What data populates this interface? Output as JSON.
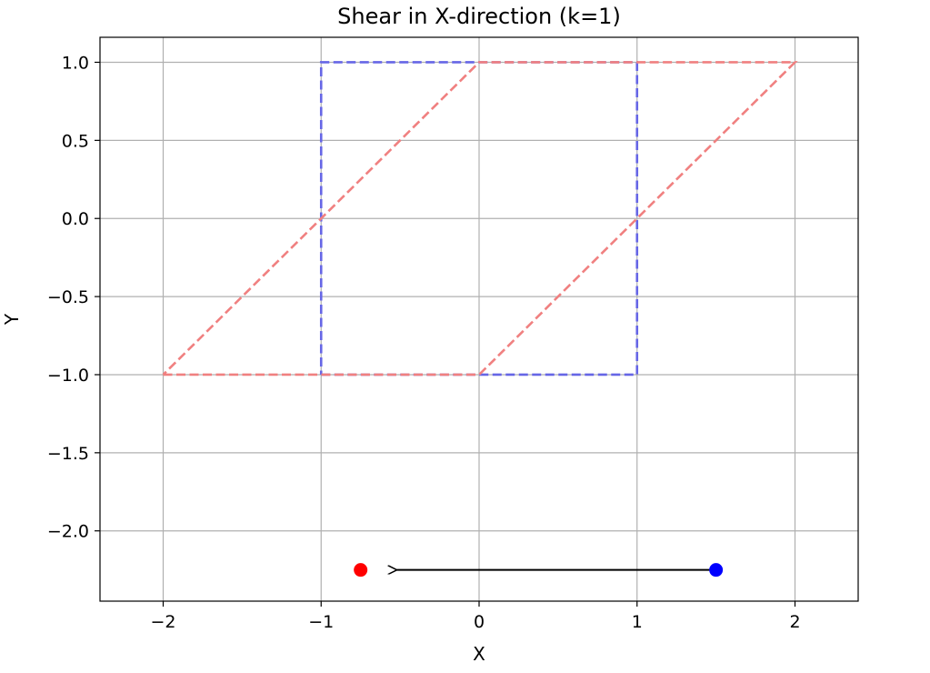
{
  "chart_data": {
    "type": "line",
    "title": "Shear in X-direction (k=1)",
    "xlabel": "X",
    "ylabel": "Y",
    "xlim": [
      -2.4,
      2.4
    ],
    "ylim": [
      -2.45,
      1.16
    ],
    "grid": true,
    "x_ticks": [
      {
        "value": -2,
        "label": "−2"
      },
      {
        "value": -1,
        "label": "−1"
      },
      {
        "value": 0,
        "label": "0"
      },
      {
        "value": 1,
        "label": "1"
      },
      {
        "value": 2,
        "label": "2"
      }
    ],
    "y_ticks": [
      {
        "value": 1.0,
        "label": "1.0"
      },
      {
        "value": 0.5,
        "label": "0.5"
      },
      {
        "value": 0.0,
        "label": "0.0"
      },
      {
        "value": -0.5,
        "label": "−0.5"
      },
      {
        "value": -1.0,
        "label": "−1.0"
      },
      {
        "value": -1.5,
        "label": "−1.5"
      },
      {
        "value": -2.0,
        "label": "−2.0"
      }
    ],
    "series": [
      {
        "style": "dashed",
        "color": "#6666e6",
        "points": [
          [
            -1,
            -1
          ],
          [
            1,
            -1
          ],
          [
            1,
            1
          ],
          [
            -1,
            1
          ],
          [
            -1,
            -1
          ]
        ]
      },
      {
        "style": "dashed",
        "color": "#f08080",
        "points": [
          [
            -2,
            -1
          ],
          [
            0,
            -1
          ],
          [
            2,
            1
          ],
          [
            0,
            1
          ],
          [
            -2,
            -1
          ]
        ]
      }
    ],
    "markers": [
      {
        "x": 1.5,
        "y": -2.25,
        "color": "#0000ff"
      },
      {
        "x": -0.75,
        "y": -2.25,
        "color": "#ff0000"
      }
    ],
    "arrow": {
      "from": [
        1.5,
        -2.25
      ],
      "to": [
        -0.52,
        -2.25
      ],
      "color": "#000000"
    }
  }
}
